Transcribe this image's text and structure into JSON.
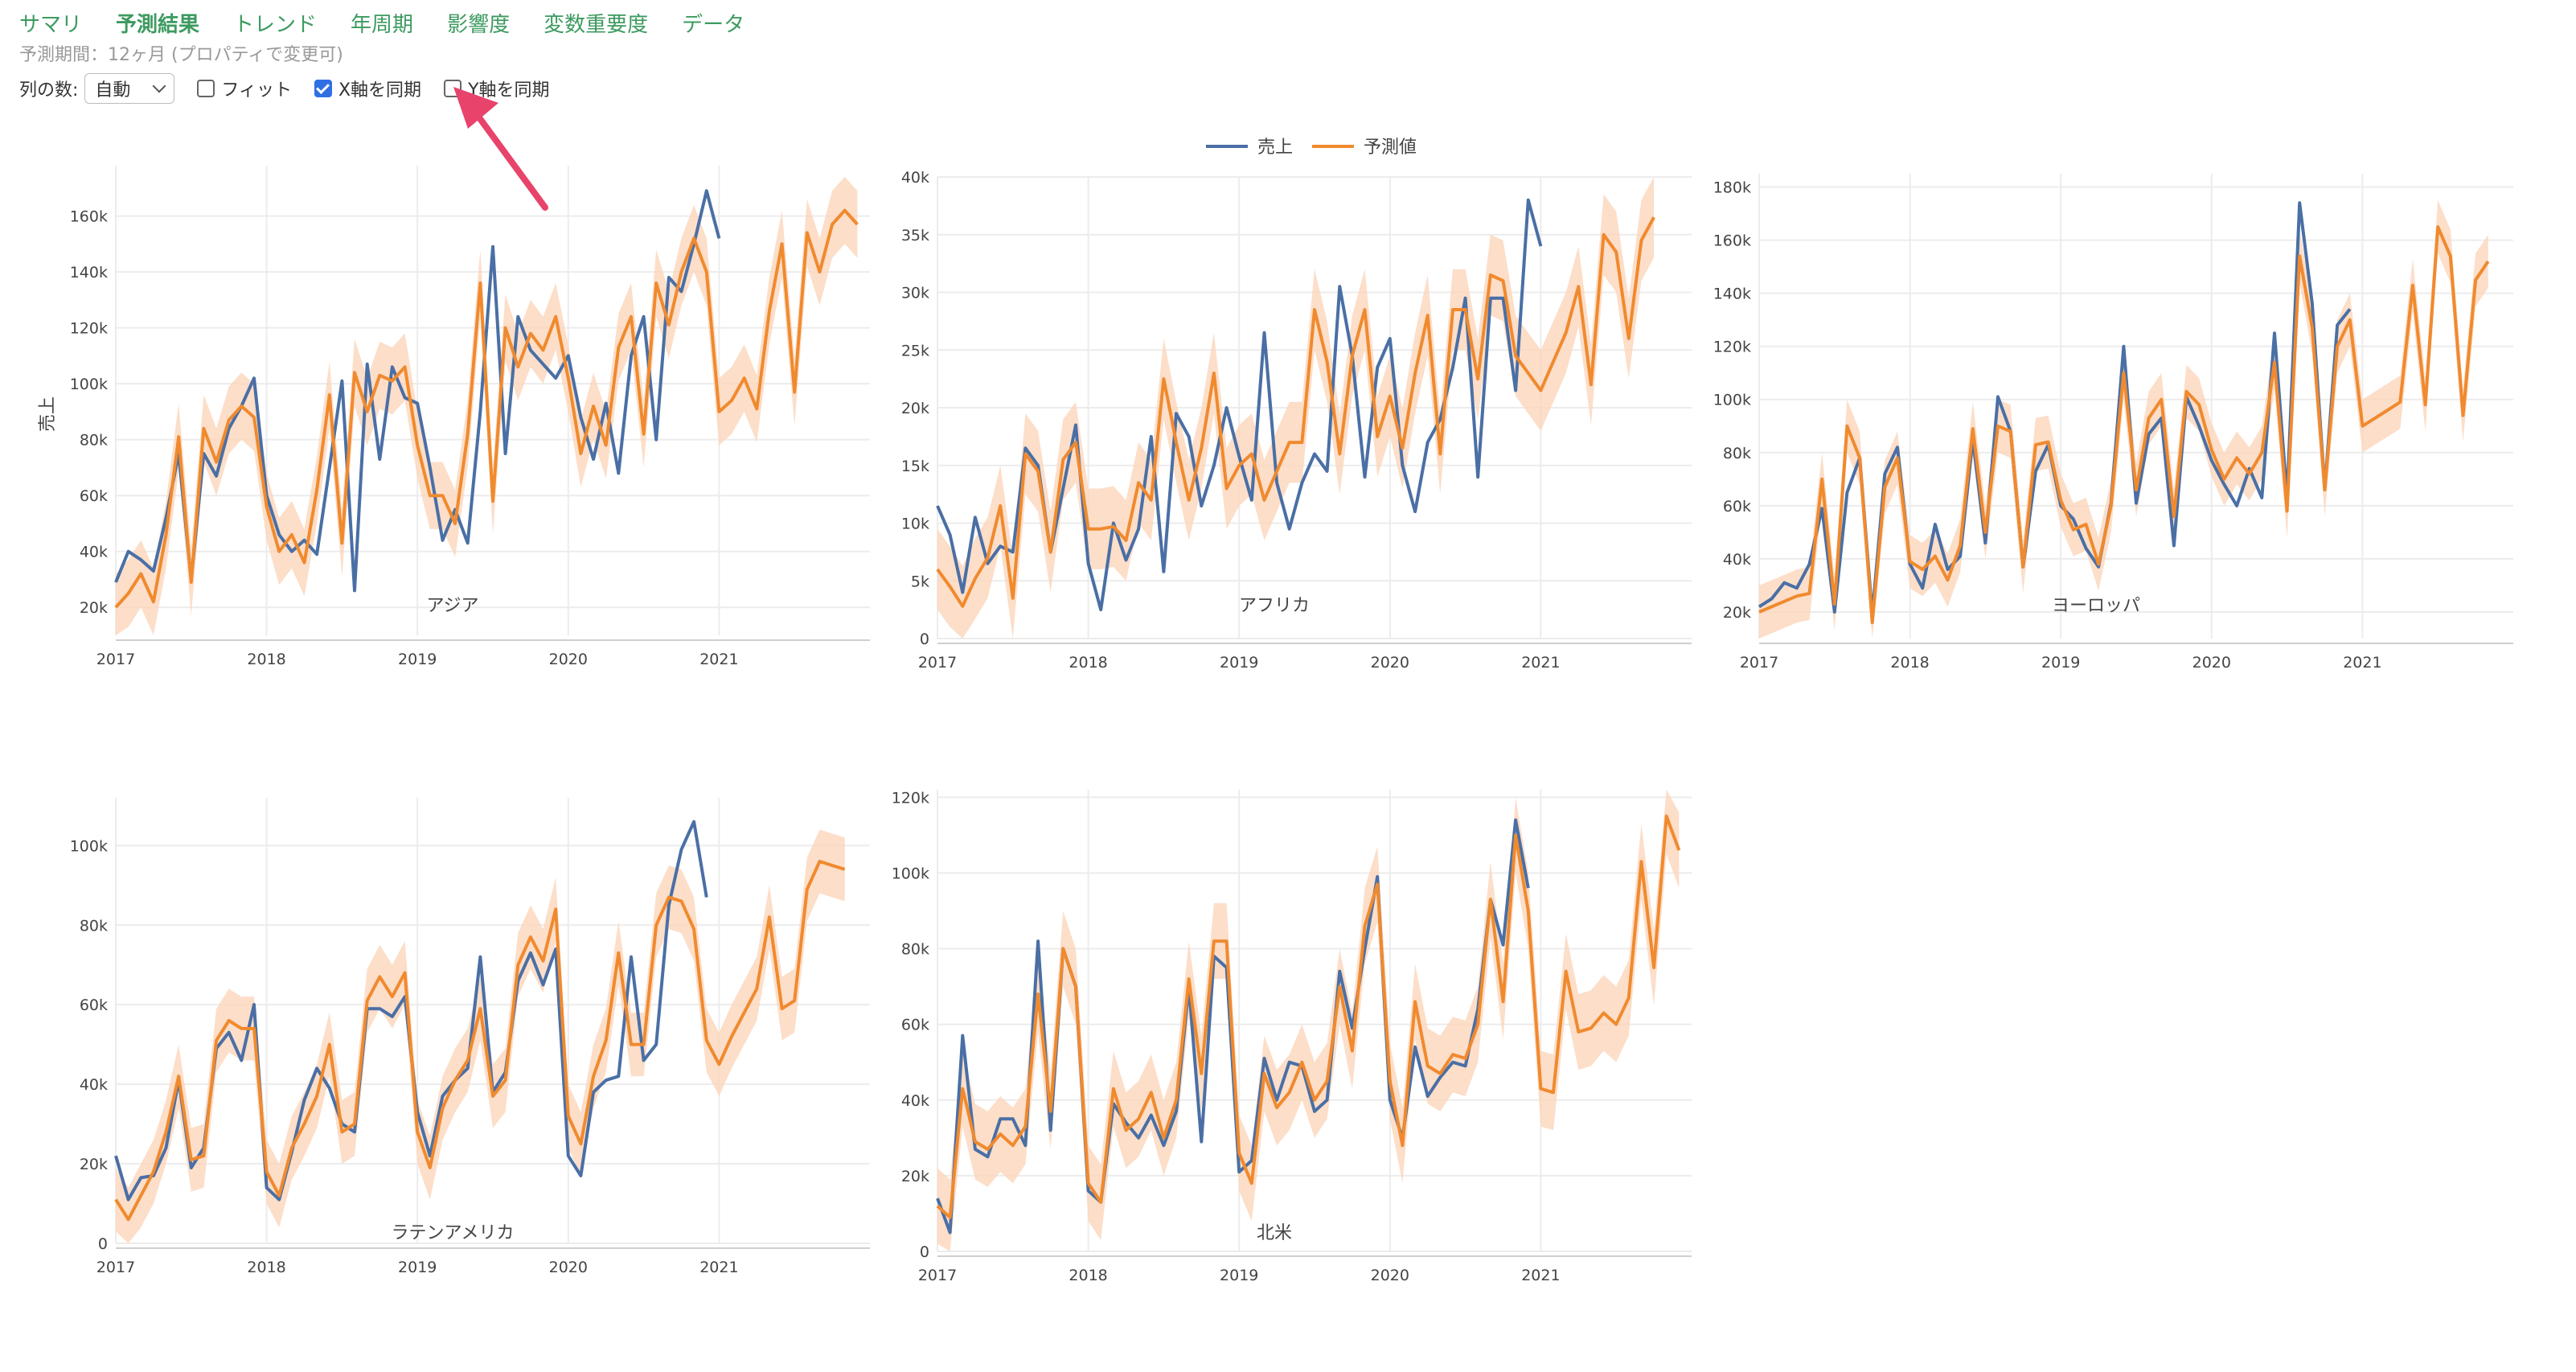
{
  "tabs": [
    {
      "label": "サマリ",
      "active": false
    },
    {
      "label": "予測結果",
      "active": true
    },
    {
      "label": "トレンド",
      "active": false
    },
    {
      "label": "年周期",
      "active": false
    },
    {
      "label": "影響度",
      "active": false
    },
    {
      "label": "変数重要度",
      "active": false
    },
    {
      "label": "データ",
      "active": false
    }
  ],
  "period_text": "予測期間：12ヶ月 (プロパティで変更可)",
  "controls": {
    "columns_label": "列の数:",
    "columns_value": "自動",
    "fit_label": "フィット",
    "fit_checked": false,
    "sync_x_label": "X軸を同期",
    "sync_x_checked": true,
    "sync_y_label": "Y軸を同期",
    "sync_y_checked": false
  },
  "legend": {
    "actual": "売上",
    "forecast": "予測値",
    "actual_color": "#4a6fa5",
    "forecast_color": "#f08a2e",
    "band_color": "#fbd6bc"
  },
  "y_title": "売上",
  "annotation_color": "#e8436b",
  "chart_data": [
    {
      "type": "line",
      "title": "アジア",
      "ylim": [
        10000,
        178000
      ],
      "yticks": [
        20000,
        40000,
        60000,
        80000,
        100000,
        120000,
        140000,
        160000
      ],
      "ytick_labels": [
        "20k",
        "40k",
        "60k",
        "80k",
        "100k",
        "120k",
        "140k",
        "160k"
      ],
      "xticks": [
        "2017",
        "2018",
        "2019",
        "2020",
        "2021"
      ],
      "actual": [
        29000,
        40000,
        37000,
        33000,
        52000,
        75000,
        30000,
        75000,
        67000,
        84000,
        92000,
        102000,
        60000,
        46000,
        40000,
        44000,
        39000,
        70000,
        101000,
        26000,
        107000,
        73000,
        106000,
        95000,
        93000,
        70000,
        44000,
        55000,
        43000,
        90000,
        149000,
        75000,
        124000,
        112000,
        107000,
        102000,
        110000,
        88000,
        73000,
        93000,
        68000,
        110000,
        124000,
        80000,
        138000,
        133000,
        150000,
        169000,
        152000
      ],
      "forecast": [
        20000,
        25000,
        32000,
        22000,
        46000,
        81000,
        29000,
        84000,
        72000,
        87000,
        92000,
        88000,
        56000,
        40000,
        46000,
        36000,
        62000,
        96000,
        43000,
        104000,
        90000,
        103000,
        101000,
        106000,
        78000,
        60000,
        60000,
        50000,
        82000,
        136000,
        58000,
        120000,
        106000,
        118000,
        112000,
        124000,
        102000,
        75000,
        92000,
        78000,
        113000,
        124000,
        82000,
        136000,
        121000,
        140000,
        152000,
        140000,
        90000,
        94000,
        102000,
        91000,
        126000,
        150000,
        97000,
        154000,
        140000,
        157000,
        162000,
        157000
      ],
      "band": 12000
    },
    {
      "type": "line",
      "title": "アフリカ",
      "ylim": [
        0,
        40000
      ],
      "yticks": [
        0,
        5000,
        10000,
        15000,
        20000,
        25000,
        30000,
        35000,
        40000
      ],
      "ytick_labels": [
        "0",
        "5k",
        "10k",
        "15k",
        "20k",
        "25k",
        "30k",
        "35k",
        "40k"
      ],
      "xticks": [
        "2017",
        "2018",
        "2019",
        "2020",
        "2021"
      ],
      "actual": [
        11500,
        9000,
        4000,
        10500,
        6500,
        8000,
        7500,
        16500,
        15000,
        7500,
        13000,
        18500,
        6500,
        2500,
        10000,
        6800,
        9500,
        17500,
        5800,
        19500,
        17500,
        11500,
        15000,
        20000,
        15800,
        12000,
        26500,
        13500,
        9500,
        13500,
        16000,
        14500,
        30500,
        24500,
        14000,
        23500,
        26000,
        15000,
        11000,
        17000,
        19000,
        23500,
        29500,
        14000,
        29500,
        29500,
        21500,
        38000,
        34000
      ],
      "forecast": [
        6000,
        4500,
        2800,
        5200,
        7000,
        11500,
        3500,
        16000,
        14500,
        7500,
        15500,
        17000,
        9500,
        9500,
        9700,
        8500,
        13500,
        12000,
        22500,
        17000,
        12000,
        16500,
        23000,
        13000,
        15000,
        16000,
        12000,
        14500,
        17000,
        17000,
        28500,
        24000,
        16000,
        24500,
        28500,
        17500,
        21000,
        16500,
        23000,
        28000,
        16000,
        28500,
        28500,
        22500,
        31500,
        31000,
        24500,
        23000,
        21500,
        24000,
        26500,
        30500,
        22000,
        35000,
        33500,
        26000,
        34500,
        36500
      ],
      "band": 3500
    },
    {
      "type": "line",
      "title": "ヨーロッパ",
      "ylim": [
        10000,
        185000
      ],
      "yticks": [
        20000,
        40000,
        60000,
        80000,
        100000,
        120000,
        140000,
        160000,
        180000
      ],
      "ytick_labels": [
        "20k",
        "40k",
        "60k",
        "80k",
        "100k",
        "120k",
        "140k",
        "160k",
        "180k"
      ],
      "xticks": [
        "2017",
        "2018",
        "2019",
        "2020",
        "2021"
      ],
      "actual": [
        22000,
        25000,
        31000,
        29000,
        38000,
        59000,
        20000,
        65000,
        78000,
        19000,
        72000,
        82000,
        38000,
        29000,
        53000,
        36000,
        41000,
        85000,
        46000,
        101000,
        88000,
        37000,
        73000,
        83000,
        60000,
        55000,
        44000,
        37000,
        61000,
        120000,
        61000,
        87000,
        93000,
        45000,
        101000,
        90000,
        77000,
        68000,
        60000,
        74000,
        63000,
        125000,
        63000,
        174000,
        136000,
        66000,
        128000,
        134000
      ],
      "forecast": [
        20000,
        22000,
        24000,
        26000,
        27000,
        70000,
        23000,
        90000,
        78000,
        16000,
        67000,
        78000,
        39000,
        36000,
        41000,
        32000,
        45000,
        89000,
        50000,
        90000,
        88000,
        37000,
        83000,
        84000,
        62000,
        51000,
        53000,
        38000,
        60000,
        110000,
        66000,
        93000,
        100000,
        56000,
        103000,
        98000,
        81000,
        70000,
        78000,
        72000,
        80000,
        114000,
        58000,
        154000,
        127000,
        66000,
        120000,
        130000,
        90000,
        93000,
        96000,
        99000,
        143000,
        98000,
        165000,
        154000,
        94000,
        145000,
        152000
      ],
      "band": 10000
    },
    {
      "type": "line",
      "title": "ラテンアメリカ",
      "ylim": [
        0,
        112000
      ],
      "yticks": [
        0,
        20000,
        40000,
        60000,
        80000,
        100000
      ],
      "ytick_labels": [
        "0",
        "20k",
        "40k",
        "60k",
        "80k",
        "100k"
      ],
      "xticks": [
        "2017",
        "2018",
        "2019",
        "2020",
        "2021"
      ],
      "actual": [
        22000,
        11000,
        16500,
        17000,
        24000,
        41000,
        19000,
        24000,
        49000,
        53000,
        46000,
        60000,
        14000,
        11000,
        23000,
        36000,
        44000,
        39000,
        30000,
        28000,
        59000,
        59000,
        57000,
        62000,
        33000,
        22000,
        37000,
        41000,
        44000,
        72000,
        38000,
        43000,
        66000,
        73000,
        65000,
        74000,
        22000,
        17000,
        38000,
        41000,
        42000,
        72000,
        46000,
        50000,
        85000,
        99000,
        106000,
        87000
      ],
      "forecast": [
        11000,
        6000,
        12000,
        18000,
        28000,
        42000,
        21000,
        22000,
        51000,
        56000,
        54000,
        54000,
        18000,
        12000,
        24000,
        30000,
        37000,
        50000,
        28000,
        30000,
        61000,
        67000,
        62000,
        68000,
        28000,
        19000,
        34000,
        41000,
        46000,
        59000,
        37000,
        41000,
        70000,
        77000,
        71000,
        84000,
        32000,
        25000,
        42000,
        51000,
        73000,
        50000,
        50000,
        80000,
        87000,
        86000,
        79000,
        51000,
        45000,
        52000,
        58000,
        64000,
        82000,
        59000,
        61000,
        89000,
        96000,
        95000,
        94000
      ],
      "band": 8000
    },
    {
      "type": "line",
      "title": "北米",
      "ylim": [
        0,
        122000
      ],
      "yticks": [
        0,
        20000,
        40000,
        60000,
        80000,
        100000,
        120000
      ],
      "ytick_labels": [
        "0",
        "20k",
        "40k",
        "60k",
        "80k",
        "100k",
        "120k"
      ],
      "xticks": [
        "2017",
        "2018",
        "2019",
        "2020",
        "2021"
      ],
      "actual": [
        14000,
        5000,
        57000,
        27000,
        25000,
        35000,
        35000,
        28000,
        82000,
        32000,
        80000,
        70000,
        16000,
        13000,
        39000,
        34000,
        30000,
        36000,
        28000,
        37000,
        70000,
        29000,
        78000,
        75000,
        21000,
        24000,
        51000,
        40000,
        50000,
        49000,
        37000,
        40000,
        74000,
        59000,
        80000,
        99000,
        40000,
        30000,
        54000,
        41000,
        46000,
        50000,
        49000,
        64000,
        93000,
        81000,
        114000,
        96000
      ],
      "forecast": [
        12000,
        9000,
        43000,
        29000,
        27000,
        31000,
        28000,
        33000,
        68000,
        37000,
        80000,
        70000,
        18000,
        13000,
        43000,
        32000,
        35000,
        42000,
        30000,
        40000,
        72000,
        47000,
        82000,
        82000,
        26000,
        18000,
        47000,
        38000,
        42000,
        50000,
        40000,
        45000,
        70000,
        53000,
        86000,
        97000,
        45000,
        28000,
        66000,
        49000,
        47000,
        52000,
        51000,
        60000,
        93000,
        66000,
        110000,
        90000,
        43000,
        42000,
        74000,
        58000,
        59000,
        63000,
        60000,
        67000,
        103000,
        75000,
        115000,
        106000
      ],
      "band": 10000
    }
  ]
}
